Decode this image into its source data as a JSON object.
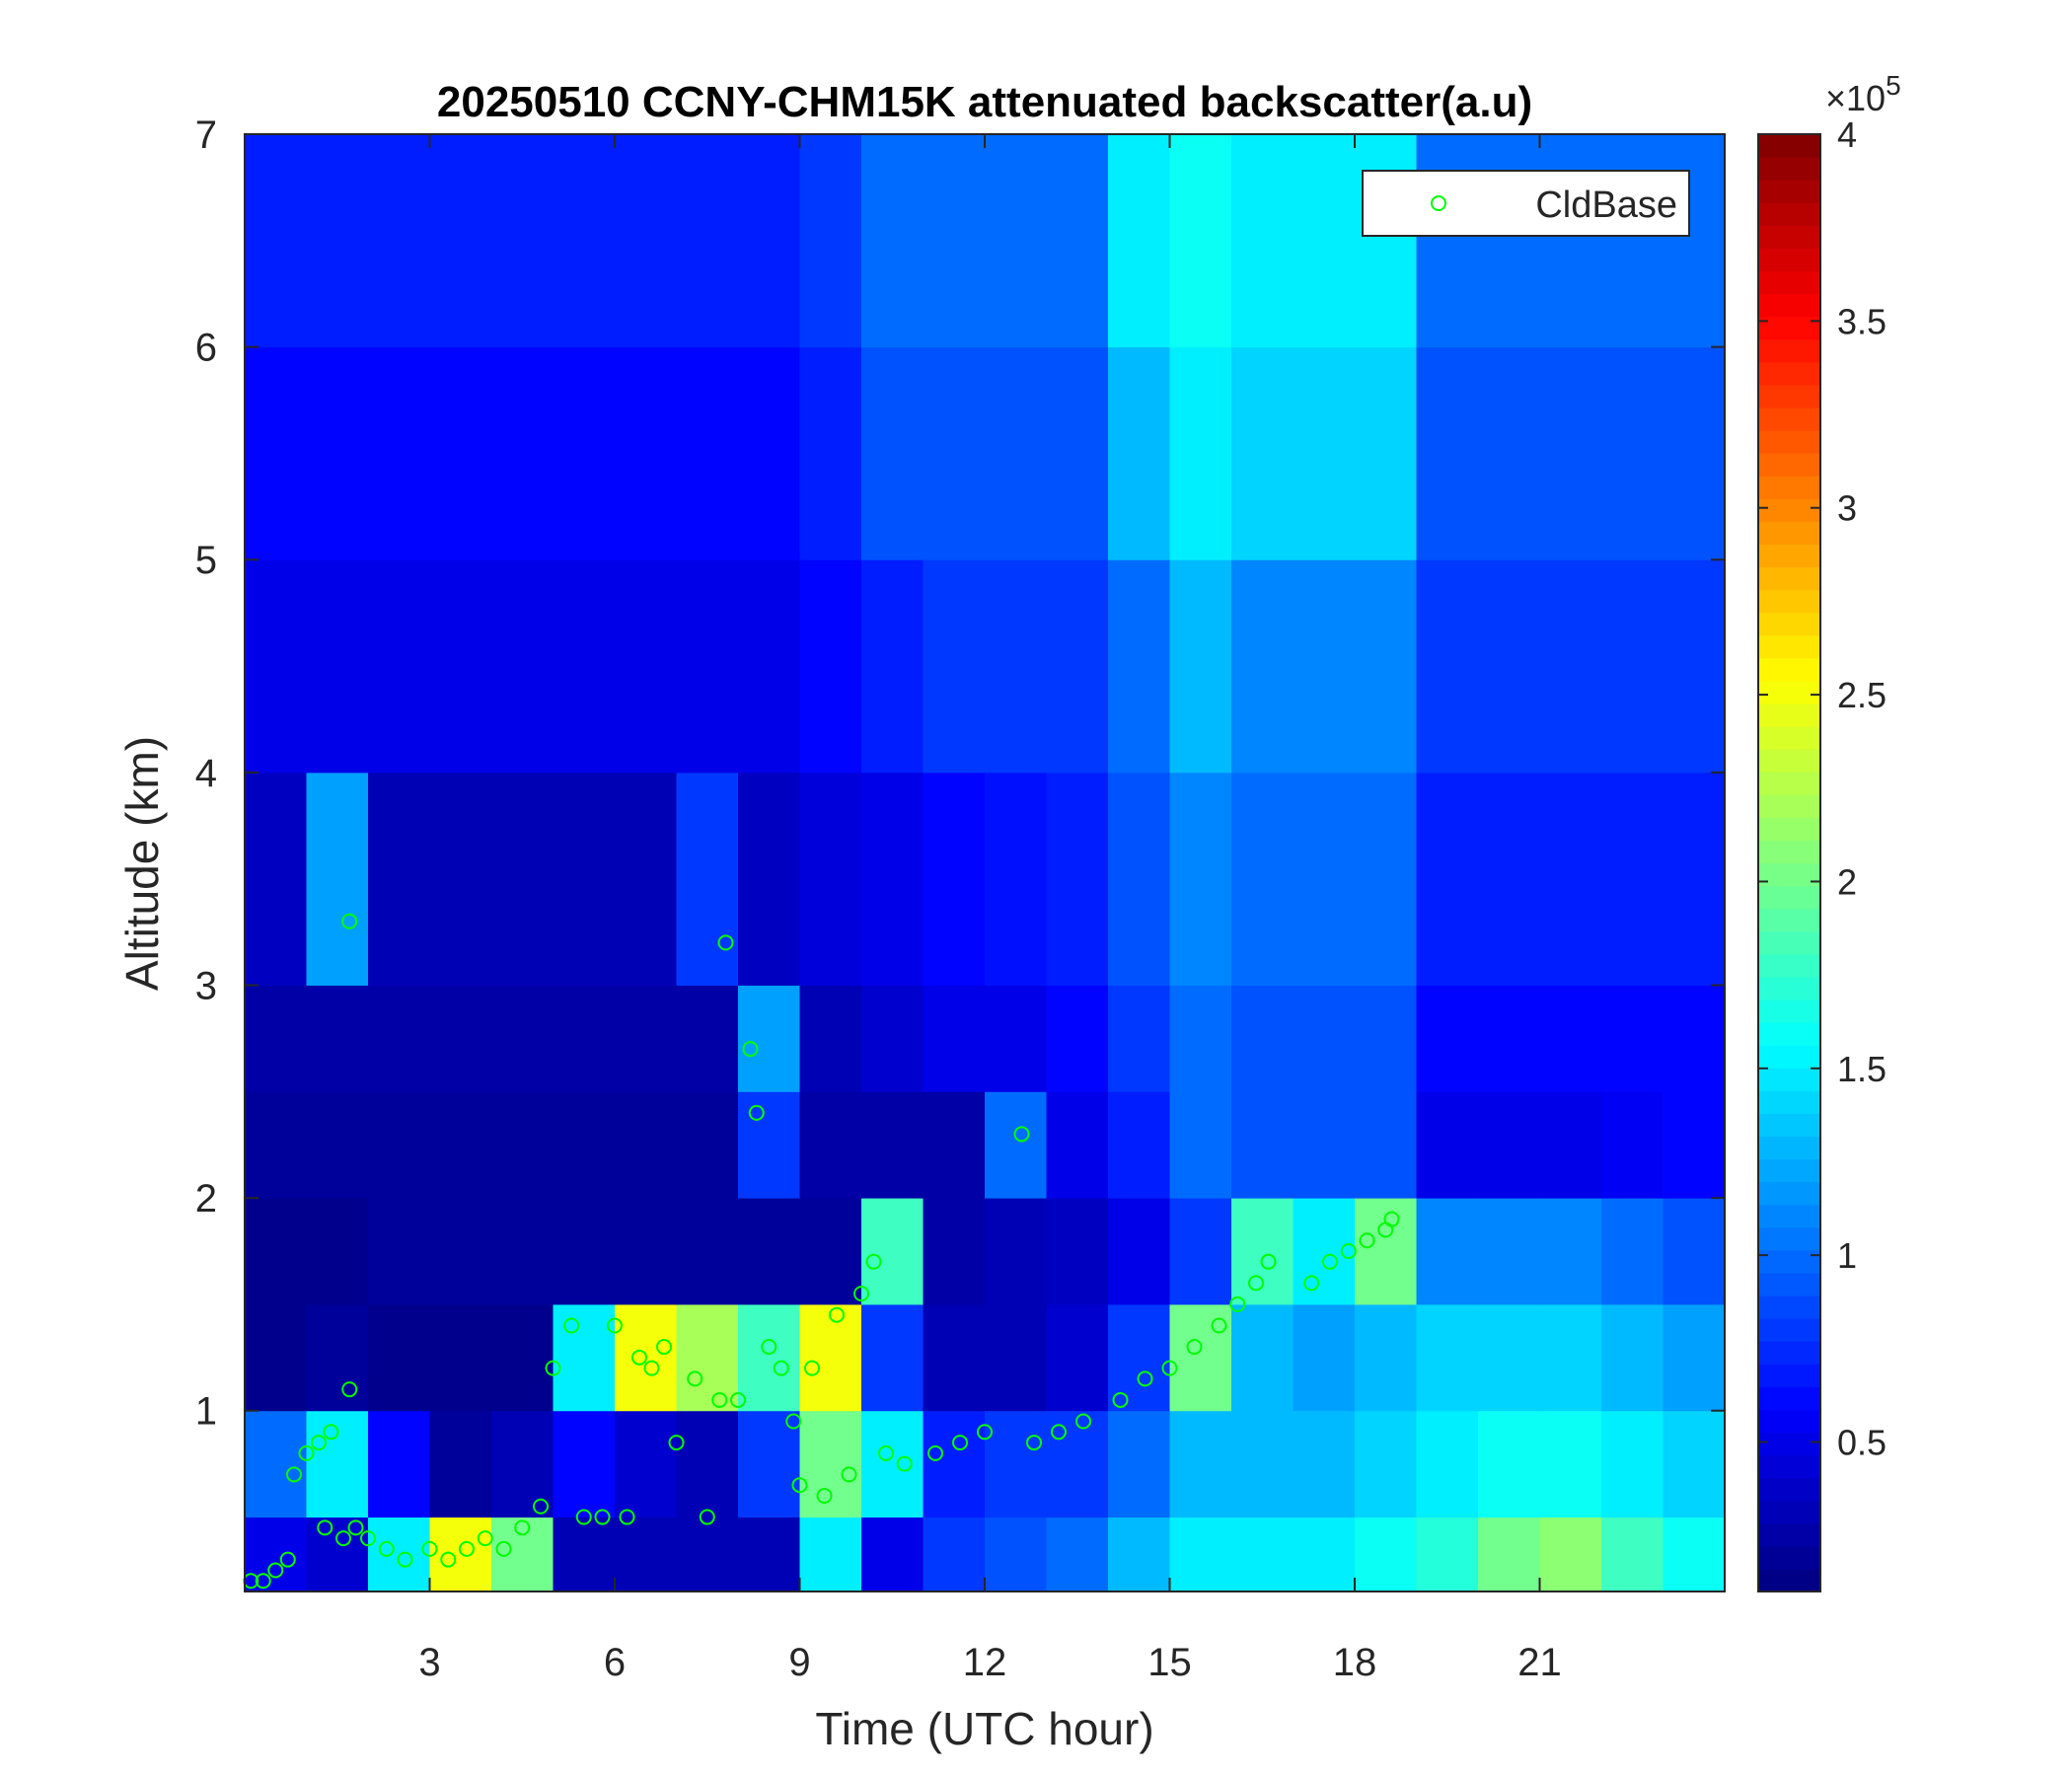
{
  "chart_data": {
    "type": "heatmap",
    "title": "20250510 CCNY-CHM15K attenuated backscatter(a.u)",
    "xlabel": "Time (UTC hour)",
    "ylabel": "Altitude (km)",
    "xlim": [
      0,
      24
    ],
    "ylim": [
      0.15,
      7
    ],
    "xticks": [
      3,
      6,
      9,
      12,
      15,
      18,
      21
    ],
    "yticks": [
      1,
      2,
      3,
      4,
      5,
      6,
      7
    ],
    "x_edges": [
      0,
      1,
      2,
      3,
      4,
      5,
      6,
      7,
      8,
      9,
      10,
      11,
      12,
      13,
      14,
      15,
      16,
      17,
      18,
      19,
      20,
      21,
      22,
      23,
      24
    ],
    "y_edges": [
      0.15,
      0.5,
      1,
      1.5,
      2,
      2.5,
      3,
      4,
      5,
      6,
      7
    ],
    "z": [
      [
        0.5,
        0.4,
        1.5,
        2.5,
        2.0,
        0.3,
        0.3,
        0.3,
        0.3,
        1.5,
        0.5,
        0.8,
        0.9,
        1.0,
        1.3,
        1.5,
        1.5,
        1.5,
        1.6,
        1.7,
        2.0,
        2.1,
        1.8,
        1.6
      ],
      [
        1.0,
        1.5,
        0.6,
        0.2,
        0.3,
        0.6,
        0.4,
        0.3,
        0.8,
        2.0,
        1.5,
        0.7,
        0.8,
        0.8,
        1.0,
        1.3,
        1.3,
        1.3,
        1.4,
        1.5,
        1.6,
        1.6,
        1.5,
        1.4
      ],
      [
        0.15,
        0.2,
        0.15,
        0.15,
        0.15,
        1.5,
        2.5,
        2.2,
        1.8,
        2.5,
        0.8,
        0.3,
        0.3,
        0.4,
        0.8,
        2.0,
        1.3,
        1.2,
        1.3,
        1.4,
        1.4,
        1.4,
        1.3,
        1.2
      ],
      [
        0.15,
        0.15,
        0.2,
        0.2,
        0.2,
        0.2,
        0.2,
        0.2,
        0.2,
        0.2,
        1.8,
        0.25,
        0.3,
        0.35,
        0.5,
        0.8,
        1.8,
        1.5,
        2.0,
        1.1,
        1.1,
        1.1,
        1.0,
        0.9
      ],
      [
        0.2,
        0.2,
        0.2,
        0.2,
        0.2,
        0.2,
        0.2,
        0.2,
        0.8,
        0.25,
        0.25,
        0.25,
        1.0,
        0.5,
        0.7,
        1.0,
        0.9,
        0.9,
        0.9,
        0.5,
        0.5,
        0.5,
        0.55,
        0.6
      ],
      [
        0.25,
        0.25,
        0.25,
        0.25,
        0.25,
        0.25,
        0.25,
        0.25,
        1.2,
        0.3,
        0.4,
        0.5,
        0.5,
        0.6,
        0.8,
        1.0,
        0.9,
        0.9,
        0.9,
        0.6,
        0.6,
        0.6,
        0.6,
        0.6
      ],
      [
        0.35,
        1.2,
        0.3,
        0.3,
        0.3,
        0.3,
        0.3,
        0.8,
        0.35,
        0.45,
        0.5,
        0.6,
        0.65,
        0.7,
        0.9,
        1.1,
        1.0,
        1.0,
        1.0,
        0.7,
        0.7,
        0.7,
        0.7,
        0.7
      ],
      [
        0.5,
        0.5,
        0.5,
        0.5,
        0.5,
        0.5,
        0.5,
        0.5,
        0.5,
        0.6,
        0.7,
        0.8,
        0.8,
        0.8,
        1.0,
        1.3,
        1.1,
        1.1,
        1.1,
        0.8,
        0.8,
        0.8,
        0.8,
        0.8
      ],
      [
        0.6,
        0.6,
        0.6,
        0.6,
        0.6,
        0.6,
        0.6,
        0.6,
        0.6,
        0.7,
        0.9,
        0.9,
        0.9,
        0.9,
        1.3,
        1.5,
        1.4,
        1.4,
        1.4,
        0.9,
        0.9,
        0.9,
        0.9,
        0.9
      ],
      [
        0.7,
        0.7,
        0.7,
        0.7,
        0.7,
        0.7,
        0.7,
        0.7,
        0.7,
        0.8,
        1.0,
        1.0,
        1.0,
        1.0,
        1.5,
        1.6,
        1.5,
        1.5,
        1.5,
        1.0,
        1.0,
        1.0,
        1.0,
        1.0
      ]
    ],
    "colormap": "jet",
    "clim": [
      0.1,
      4
    ],
    "colorbar_ticks": [
      0.5,
      1,
      1.5,
      2,
      2.5,
      3,
      3.5,
      4
    ],
    "colorbar_multiplier": "×10",
    "colorbar_exponent": "5",
    "legend": "upper right",
    "overlay": {
      "type": "scatter",
      "name": "CldBase",
      "color": "#00ff00",
      "x": [
        0.1,
        0.3,
        0.5,
        0.7,
        0.8,
        1,
        1.2,
        1.4,
        1.7,
        1.7,
        1.3,
        1.6,
        1.8,
        2,
        2.3,
        2.6,
        3,
        3.3,
        3.6,
        3.9,
        4.2,
        4.5,
        4.8,
        5,
        5.3,
        5.5,
        5.8,
        6,
        6.2,
        6.4,
        6.6,
        6.8,
        7,
        7.3,
        7.5,
        7.7,
        7.8,
        8.0,
        8.2,
        8.3,
        8.5,
        8.7,
        8.9,
        9.0,
        9.2,
        9.4,
        9.6,
        9.8,
        10.0,
        10.2,
        10.4,
        10.7,
        11.2,
        11.6,
        12,
        12.6,
        12.8,
        13.2,
        13.6,
        14.2,
        14.6,
        15,
        15.4,
        15.8,
        16.1,
        16.4,
        16.6,
        17.3,
        17.6,
        17.9,
        18.2,
        18.5,
        18.6
      ],
      "y": [
        0.2,
        0.2,
        0.25,
        0.3,
        0.7,
        0.8,
        0.85,
        0.9,
        1.1,
        3.3,
        0.45,
        0.4,
        0.45,
        0.4,
        0.35,
        0.3,
        0.35,
        0.3,
        0.35,
        0.4,
        0.35,
        0.45,
        0.55,
        1.2,
        1.4,
        0.5,
        0.5,
        1.4,
        0.5,
        1.25,
        1.2,
        1.3,
        0.85,
        1.15,
        0.5,
        1.05,
        3.2,
        1.05,
        2.7,
        2.4,
        1.3,
        1.2,
        0.95,
        0.65,
        1.2,
        0.6,
        1.45,
        0.7,
        1.55,
        1.7,
        0.8,
        0.75,
        0.8,
        0.85,
        0.9,
        2.3,
        0.85,
        0.9,
        0.95,
        1.05,
        1.15,
        1.2,
        1.3,
        1.4,
        1.5,
        1.6,
        1.7,
        1.6,
        1.7,
        1.75,
        1.8,
        1.85,
        1.9
      ]
    }
  }
}
